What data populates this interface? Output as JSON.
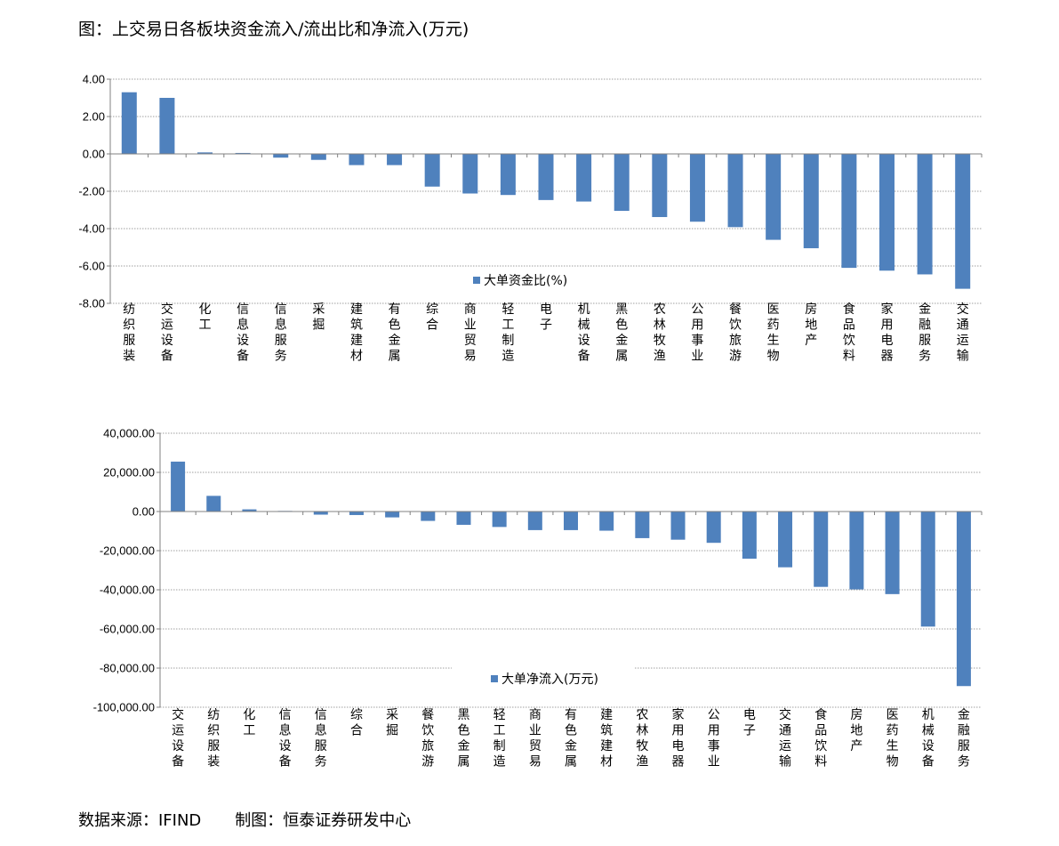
{
  "title": "图：上交易日各板块资金流入/流出比和净流入(万元)",
  "source": {
    "data_source": "数据来源：IFIND",
    "made_by": "制图：恒泰证券研发中心"
  },
  "colors": {
    "bar": "#4f81bd",
    "grid": "#808080",
    "axis": "#808080"
  },
  "chart_data": [
    {
      "type": "bar",
      "series": [
        {
          "name": "大单资金比(%)",
          "values": [
            3.3,
            3.0,
            0.08,
            0.05,
            -0.2,
            -0.32,
            -0.6,
            -0.6,
            -1.75,
            -2.12,
            -2.2,
            -2.47,
            -2.55,
            -3.05,
            -3.38,
            -3.63,
            -3.92,
            -4.6,
            -5.05,
            -6.1,
            -6.25,
            -6.45,
            -7.22
          ]
        }
      ],
      "categories": [
        "纺织服装",
        "交运设备",
        "化工",
        "信息设备",
        "信息服务",
        "采掘",
        "建筑建材",
        "有色金属",
        "综合",
        "商业贸易",
        "轻工制造",
        "电子",
        "机械设备",
        "黑色金属",
        "农林牧渔",
        "公用事业",
        "餐饮旅游",
        "医药生物",
        "房地产",
        "食品饮料",
        "家用电器",
        "金融服务",
        "交通运输"
      ],
      "yticks": [
        "4.00",
        "2.00",
        "0.00",
        "-2.00",
        "-4.00",
        "-6.00",
        "-8.00"
      ],
      "ylim": [
        -8,
        4
      ],
      "grid": true,
      "legend_position": "bottom-center"
    },
    {
      "type": "bar",
      "series": [
        {
          "name": "大单净流入(万元)",
          "values": [
            25500,
            8000,
            1100,
            300,
            -1600,
            -1800,
            -3000,
            -4800,
            -6800,
            -7900,
            -9500,
            -9500,
            -9800,
            -13600,
            -14400,
            -16000,
            -24100,
            -28500,
            -38500,
            -39800,
            -42200,
            -58800,
            -89200
          ]
        }
      ],
      "categories": [
        "交运设备",
        "纺织服装",
        "化工",
        "信息设备",
        "信息服务",
        "综合",
        "采掘",
        "餐饮旅游",
        "黑色金属",
        "轻工制造",
        "商业贸易",
        "有色金属",
        "建筑建材",
        "农林牧渔",
        "家用电器",
        "公用事业",
        "电子",
        "交通运输",
        "食品饮料",
        "房地产",
        "医药生物",
        "机械设备",
        "金融服务"
      ],
      "yticks": [
        "40,000.00",
        "20,000.00",
        "0.00",
        "-20,000.00",
        "-40,000.00",
        "-60,000.00",
        "-80,000.00",
        "-100,000.00"
      ],
      "ylim": [
        -100000,
        40000
      ],
      "grid": true,
      "legend_position": "bottom-center"
    }
  ]
}
